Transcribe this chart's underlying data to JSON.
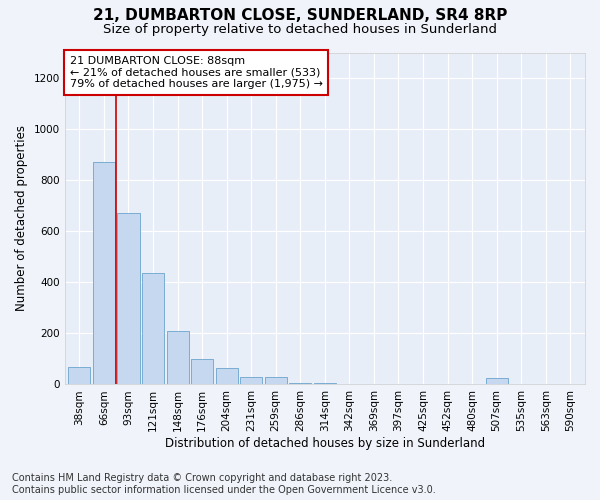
{
  "title": "21, DUMBARTON CLOSE, SUNDERLAND, SR4 8RP",
  "subtitle": "Size of property relative to detached houses in Sunderland",
  "xlabel": "Distribution of detached houses by size in Sunderland",
  "ylabel": "Number of detached properties",
  "footer_line1": "Contains HM Land Registry data © Crown copyright and database right 2023.",
  "footer_line2": "Contains public sector information licensed under the Open Government Licence v3.0.",
  "categories": [
    "38sqm",
    "66sqm",
    "93sqm",
    "121sqm",
    "148sqm",
    "176sqm",
    "204sqm",
    "231sqm",
    "259sqm",
    "286sqm",
    "314sqm",
    "342sqm",
    "369sqm",
    "397sqm",
    "425sqm",
    "452sqm",
    "480sqm",
    "507sqm",
    "535sqm",
    "563sqm",
    "590sqm"
  ],
  "values": [
    68,
    870,
    670,
    435,
    210,
    100,
    65,
    30,
    30,
    5,
    5,
    0,
    0,
    0,
    0,
    0,
    0,
    25,
    0,
    0,
    0
  ],
  "bar_color": "#c5d8ef",
  "bar_edge_color": "#6ba3cc",
  "vline_x": 1.5,
  "vline_color": "#cc0000",
  "annotation_title": "21 DUMBARTON CLOSE: 88sqm",
  "annotation_line1": "← 21% of detached houses are smaller (533)",
  "annotation_line2": "79% of detached houses are larger (1,975) →",
  "annotation_box_color": "white",
  "annotation_box_edge_color": "#cc0000",
  "ylim": [
    0,
    1300
  ],
  "yticks": [
    0,
    200,
    400,
    600,
    800,
    1000,
    1200
  ],
  "background_color": "#f0f4fa",
  "plot_bg_color": "#e8eef8",
  "grid_color": "white",
  "title_fontsize": 11,
  "subtitle_fontsize": 9.5,
  "axis_label_fontsize": 8.5,
  "tick_fontsize": 7.5,
  "annotation_fontsize": 8,
  "footer_fontsize": 7
}
